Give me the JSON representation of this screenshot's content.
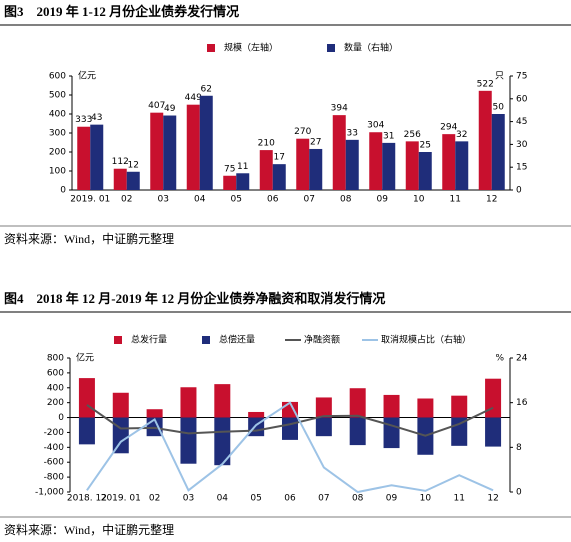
{
  "chart_data": [
    {
      "type": "bar",
      "title": "图3　2019 年 1-12 月份企业债券发行情况",
      "source": "资料来源：Wind，中证鹏元整理",
      "y_label": "亿元",
      "y2_label": "只",
      "bar_mode": "group",
      "data_labels": true,
      "categories": [
        "2019. 01",
        "02",
        "03",
        "04",
        "05",
        "06",
        "07",
        "08",
        "09",
        "10",
        "11",
        "12"
      ],
      "series": [
        {
          "name": "规模（左轴）",
          "type": "bar",
          "color": "#c8102e",
          "values": [
            333,
            112,
            407,
            449,
            75,
            210,
            270,
            394,
            304,
            256,
            294,
            522
          ]
        },
        {
          "name": "数量（右轴）",
          "type": "bar",
          "axis": "y2",
          "color": "#1f2d7a",
          "values": [
            43,
            12,
            49,
            62,
            11,
            17,
            27,
            33,
            31,
            25,
            32,
            50
          ]
        }
      ],
      "ylim": [
        0,
        600
      ],
      "yticks": [
        0,
        100,
        200,
        300,
        400,
        500,
        600
      ],
      "y2lim": [
        0,
        75
      ],
      "y2ticks": [
        0,
        15,
        30,
        45,
        60,
        75
      ]
    },
    {
      "type": "bar",
      "title": "图4　2018 年 12 月-2019 年 12 月份企业债券净融资和取消发行情况",
      "source": "资料来源：Wind，中证鹏元整理",
      "y_label": "亿元",
      "y2_label": "%",
      "bar_mode": "overlay",
      "data_labels": false,
      "categories": [
        "2018. 12",
        "2019. 01",
        "02",
        "03",
        "04",
        "05",
        "06",
        "07",
        "08",
        "09",
        "10",
        "11",
        "12"
      ],
      "series": [
        {
          "name": "总发行量",
          "type": "bar",
          "color": "#c8102e",
          "values": [
            530,
            333,
            112,
            407,
            449,
            75,
            210,
            270,
            394,
            304,
            256,
            294,
            522
          ]
        },
        {
          "name": "总偿还量",
          "type": "bar",
          "color": "#1f2d7a",
          "values": [
            -360,
            -480,
            -250,
            -620,
            -640,
            -250,
            -300,
            -250,
            -370,
            -410,
            -500,
            -380,
            -390
          ]
        },
        {
          "name": "净融资额",
          "type": "line",
          "color": "#555555",
          "values": [
            170,
            -147,
            -138,
            -213,
            -191,
            -175,
            -90,
            20,
            24,
            -106,
            -244,
            -86,
            132
          ]
        },
        {
          "name": "取消规模占比（右轴）",
          "type": "line",
          "axis": "y2",
          "color": "#9dc3e6",
          "values": [
            0.3,
            9,
            13,
            0.3,
            5,
            12,
            16,
            4.4,
            0,
            1.2,
            0.2,
            3,
            0.3
          ]
        }
      ],
      "ylim": [
        -1000,
        800
      ],
      "yticks": [
        {
          "value": -1000,
          "label": "-1,000"
        },
        -800,
        -600,
        -400,
        -200,
        0,
        200,
        400,
        600,
        800
      ],
      "y2lim": [
        0,
        24
      ],
      "y2ticks": [
        0,
        8,
        16,
        24
      ]
    }
  ]
}
